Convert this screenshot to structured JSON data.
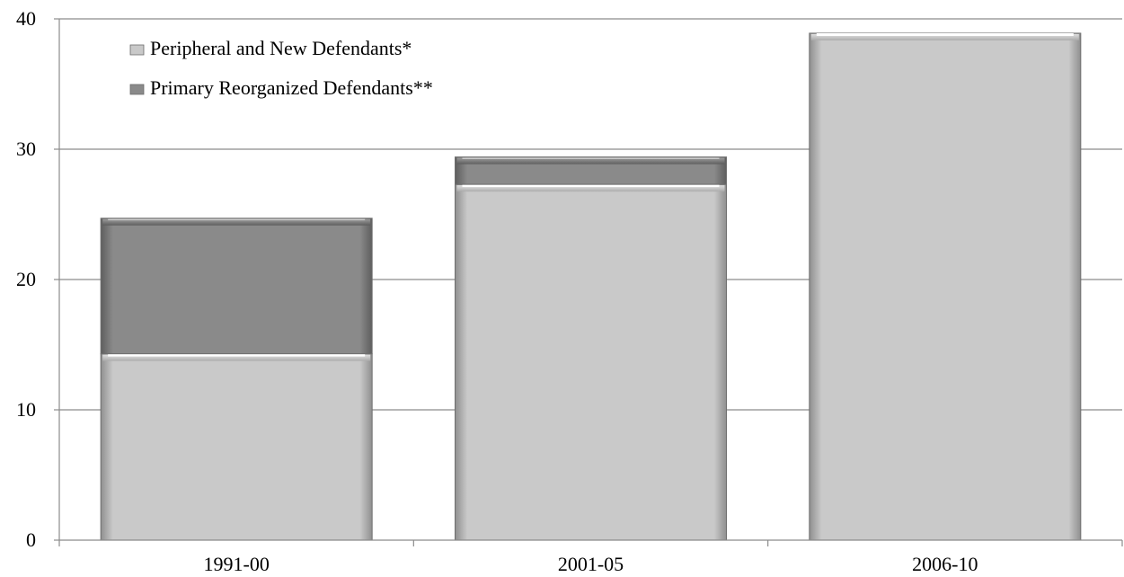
{
  "chart_data": {
    "type": "bar",
    "stacked": true,
    "categories": [
      "1991-00",
      "2001-05",
      "2006-10"
    ],
    "series": [
      {
        "name": "Peripheral and New Defendants*",
        "values": [
          14.3,
          27.3,
          38.9
        ],
        "color": "#c8c8c8"
      },
      {
        "name": "Primary Reorganized Defendants**",
        "values": [
          10.4,
          2.1,
          0
        ],
        "color": "#8a8a8a"
      }
    ],
    "yticks": [
      0,
      10,
      20,
      30,
      40
    ],
    "ylim": [
      0,
      40
    ],
    "grid": true,
    "legend_position": "top-left"
  }
}
